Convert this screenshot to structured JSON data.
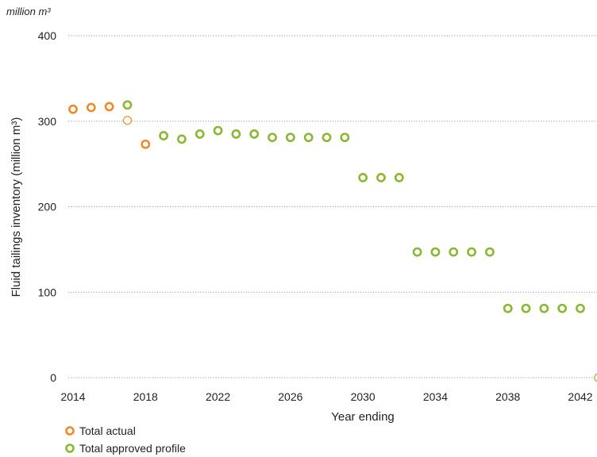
{
  "chart_data": {
    "type": "scatter",
    "unit_label": "million m³",
    "xlabel": "Year ending",
    "ylabel": "Fluid tailings inventory (million m³)",
    "xlim": [
      2014,
      2042
    ],
    "ylim": [
      0,
      400
    ],
    "x_ticks": [
      "2014",
      "2018",
      "2022",
      "2026",
      "2030",
      "2034",
      "2038",
      "2042"
    ],
    "y_ticks": [
      "0",
      "100",
      "200",
      "300",
      "400"
    ],
    "grid": "horizontal dotted",
    "legend_position": "bottom-left",
    "series": [
      {
        "name": "Total actual",
        "color": "#f08a2c",
        "points": [
          [
            2014,
            314
          ],
          [
            2015,
            316
          ],
          [
            2016,
            317
          ],
          [
            2018,
            273
          ]
        ]
      },
      {
        "name": "Total approved profile",
        "color": "#8ab833",
        "points": [
          [
            2017,
            319
          ],
          [
            2019,
            283
          ],
          [
            2020,
            279
          ],
          [
            2021,
            285
          ],
          [
            2022,
            289
          ],
          [
            2023,
            285
          ],
          [
            2024,
            285
          ],
          [
            2025,
            281
          ],
          [
            2026,
            281
          ],
          [
            2027,
            281
          ],
          [
            2028,
            281
          ],
          [
            2029,
            281
          ],
          [
            2030,
            234
          ],
          [
            2031,
            234
          ],
          [
            2032,
            234
          ],
          [
            2033,
            147
          ],
          [
            2034,
            147
          ],
          [
            2035,
            147
          ],
          [
            2036,
            147
          ],
          [
            2037,
            147
          ],
          [
            2038,
            81
          ],
          [
            2039,
            81
          ],
          [
            2040,
            81
          ],
          [
            2041,
            81
          ],
          [
            2042,
            81
          ]
        ]
      }
    ],
    "extra_points": [
      {
        "x": 2017,
        "y": 301,
        "color": "#f08a2c"
      },
      {
        "x": 2043,
        "y": 0,
        "color": "#8ab833"
      }
    ]
  }
}
